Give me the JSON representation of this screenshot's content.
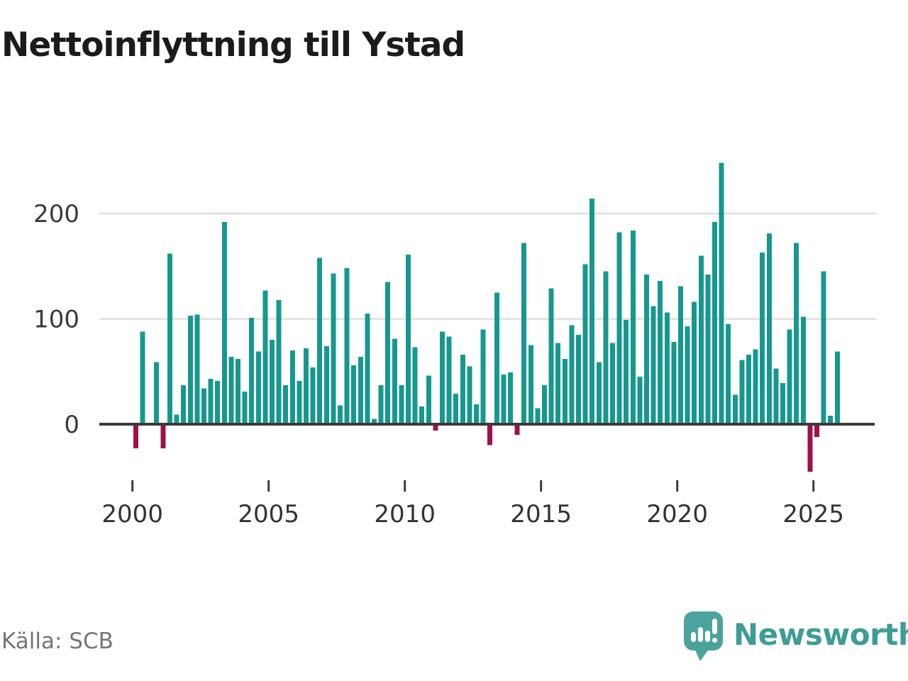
{
  "title": "Nettoinflyttning till Ystad",
  "source": "Källa: SCB",
  "branding": {
    "name": "Newsworthy",
    "logo_icon": "speech-bubble-bar-chart"
  },
  "chart_data": {
    "type": "bar",
    "title": "Nettoinflyttning till Ystad",
    "xlabel": "",
    "ylabel": "",
    "period": "2000 Q1 – 2025 Q4",
    "start_year": 2000,
    "start_quarter": 1,
    "frequency": "quarterly",
    "values": [
      -23,
      88,
      0,
      59,
      -23,
      162,
      9,
      37,
      103,
      104,
      34,
      43,
      41,
      192,
      64,
      62,
      31,
      101,
      69,
      127,
      80,
      118,
      37,
      70,
      41,
      72,
      54,
      158,
      74,
      143,
      18,
      148,
      56,
      64,
      105,
      5,
      37,
      135,
      81,
      37,
      161,
      73,
      17,
      46,
      -6,
      88,
      83,
      29,
      66,
      55,
      19,
      90,
      -20,
      125,
      47,
      49,
      -10,
      172,
      75,
      15,
      37,
      129,
      77,
      62,
      94,
      85,
      152,
      214,
      59,
      145,
      77,
      182,
      99,
      184,
      45,
      142,
      112,
      136,
      106,
      78,
      131,
      93,
      116,
      160,
      142,
      192,
      248,
      95,
      28,
      61,
      66,
      71,
      163,
      181,
      53,
      39,
      90,
      172,
      102,
      -45,
      -12,
      145,
      8,
      69
    ],
    "x_tick_labels": [
      "2000",
      "2005",
      "2010",
      "2015",
      "2020",
      "2025"
    ],
    "y_tick_labels": [
      "0",
      "100",
      "200"
    ],
    "y_ticks": [
      0,
      100,
      200
    ],
    "ylim": [
      -60,
      260
    ],
    "grid": "horizontal",
    "legend": "none",
    "positive_color": "#17988e",
    "negative_color": "#a0104a"
  }
}
